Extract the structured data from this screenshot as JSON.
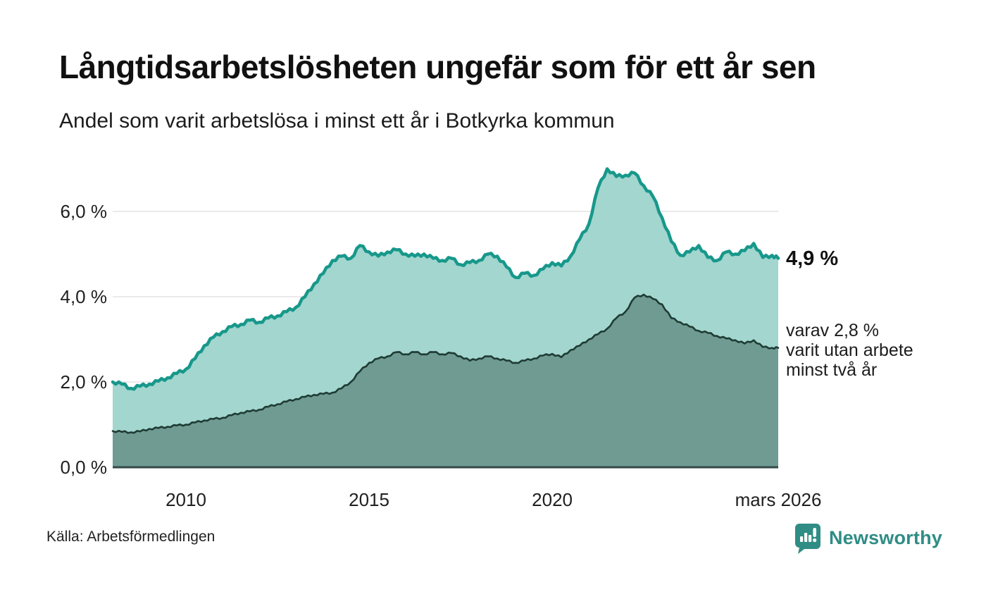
{
  "header": {
    "title": "Långtidsarbetslösheten ungefär som för ett år sen",
    "subtitle": "Andel som varit arbetslösa i minst ett år i Botkyrka kommun"
  },
  "annotations": {
    "latest_total": "4,9 %",
    "secondary_line1": "varav 2,8 %",
    "secondary_line2": "varit utan arbete",
    "secondary_line3": "minst två år"
  },
  "footer": {
    "source": "Källa: Arbetsförmedlingen",
    "brand_name": "Newsworthy"
  },
  "colors": {
    "brand_teal": "#2f8d85",
    "line_one_year": "#17988b",
    "fill_one_year": "#a2d6ce",
    "line_two_years": "#1e3b34",
    "fill_two_years": "#6f9b92",
    "grid": "#e3e3e3",
    "baseline": "#35494a",
    "text": "#111111"
  },
  "chart_data": {
    "type": "area",
    "title": "Långtidsarbetslösheten ungefär som för ett år sen",
    "subtitle": "Andel som varit arbetslösa i minst ett år i Botkyrka kommun",
    "unit": "%",
    "x_range": [
      2008,
      2026.17
    ],
    "ylim": [
      0,
      7.2
    ],
    "grid": "horizontal-only",
    "legend_position": "right-annotations",
    "y_axis": {
      "ticks": [
        {
          "label": "0,0 %",
          "value": 0
        },
        {
          "label": "2,0 %",
          "value": 2
        },
        {
          "label": "4,0 %",
          "value": 4
        },
        {
          "label": "6,0 %",
          "value": 6
        }
      ]
    },
    "x_axis": {
      "ticks": [
        {
          "label": "2010",
          "year": 2010
        },
        {
          "label": "2015",
          "year": 2015
        },
        {
          "label": "2020",
          "year": 2020
        },
        {
          "label": "mars 2026",
          "year": 2026.17
        }
      ]
    },
    "series": [
      {
        "id": "one-year",
        "name": "Andel arbetslösa minst ett år",
        "latest_label": "4,9 %",
        "latest_value": 4.9,
        "color": "#17988b",
        "fill": "#a2d6ce",
        "points": [
          [
            2008.0,
            2.0
          ],
          [
            2008.25,
            1.95
          ],
          [
            2008.5,
            1.85
          ],
          [
            2008.75,
            1.9
          ],
          [
            2009.0,
            1.95
          ],
          [
            2009.25,
            2.02
          ],
          [
            2009.5,
            2.1
          ],
          [
            2009.75,
            2.2
          ],
          [
            2010.0,
            2.3
          ],
          [
            2010.25,
            2.55
          ],
          [
            2010.5,
            2.85
          ],
          [
            2010.75,
            3.05
          ],
          [
            2011.0,
            3.18
          ],
          [
            2011.25,
            3.3
          ],
          [
            2011.5,
            3.35
          ],
          [
            2011.75,
            3.45
          ],
          [
            2012.0,
            3.4
          ],
          [
            2012.25,
            3.5
          ],
          [
            2012.5,
            3.55
          ],
          [
            2012.75,
            3.65
          ],
          [
            2013.0,
            3.75
          ],
          [
            2013.25,
            4.0
          ],
          [
            2013.5,
            4.3
          ],
          [
            2013.75,
            4.55
          ],
          [
            2014.0,
            4.85
          ],
          [
            2014.25,
            4.95
          ],
          [
            2014.5,
            4.9
          ],
          [
            2014.75,
            5.2
          ],
          [
            2015.0,
            5.05
          ],
          [
            2015.25,
            4.95
          ],
          [
            2015.5,
            5.05
          ],
          [
            2015.75,
            5.1
          ],
          [
            2016.0,
            5.0
          ],
          [
            2016.25,
            4.95
          ],
          [
            2016.5,
            5.0
          ],
          [
            2016.75,
            4.9
          ],
          [
            2017.0,
            4.85
          ],
          [
            2017.25,
            4.9
          ],
          [
            2017.5,
            4.75
          ],
          [
            2017.75,
            4.8
          ],
          [
            2018.0,
            4.85
          ],
          [
            2018.25,
            5.0
          ],
          [
            2018.5,
            4.95
          ],
          [
            2018.75,
            4.7
          ],
          [
            2019.0,
            4.45
          ],
          [
            2019.25,
            4.55
          ],
          [
            2019.5,
            4.5
          ],
          [
            2019.75,
            4.65
          ],
          [
            2020.0,
            4.8
          ],
          [
            2020.25,
            4.72
          ],
          [
            2020.5,
            4.95
          ],
          [
            2020.75,
            5.35
          ],
          [
            2021.0,
            5.7
          ],
          [
            2021.25,
            6.55
          ],
          [
            2021.5,
            7.0
          ],
          [
            2021.75,
            6.82
          ],
          [
            2022.0,
            6.85
          ],
          [
            2022.25,
            6.9
          ],
          [
            2022.5,
            6.6
          ],
          [
            2022.75,
            6.35
          ],
          [
            2023.0,
            5.85
          ],
          [
            2023.25,
            5.3
          ],
          [
            2023.5,
            4.97
          ],
          [
            2023.75,
            5.05
          ],
          [
            2024.0,
            5.2
          ],
          [
            2024.25,
            4.92
          ],
          [
            2024.5,
            4.85
          ],
          [
            2024.75,
            5.05
          ],
          [
            2025.0,
            5.0
          ],
          [
            2025.25,
            5.08
          ],
          [
            2025.5,
            5.25
          ],
          [
            2025.75,
            4.92
          ],
          [
            2026.0,
            4.97
          ],
          [
            2026.17,
            4.9
          ]
        ]
      },
      {
        "id": "two-years",
        "name": "Andel arbetslösa minst två år",
        "latest_label": "varav 2,8 % varit utan arbete minst två år",
        "latest_value": 2.8,
        "color": "#1e3b34",
        "fill": "#6f9b92",
        "points": [
          [
            2008.0,
            0.85
          ],
          [
            2008.25,
            0.83
          ],
          [
            2008.5,
            0.82
          ],
          [
            2008.75,
            0.84
          ],
          [
            2009.0,
            0.9
          ],
          [
            2009.25,
            0.92
          ],
          [
            2009.5,
            0.95
          ],
          [
            2009.75,
            0.98
          ],
          [
            2010.0,
            1.0
          ],
          [
            2010.25,
            1.05
          ],
          [
            2010.5,
            1.1
          ],
          [
            2010.75,
            1.13
          ],
          [
            2011.0,
            1.16
          ],
          [
            2011.25,
            1.22
          ],
          [
            2011.5,
            1.28
          ],
          [
            2011.75,
            1.31
          ],
          [
            2012.0,
            1.35
          ],
          [
            2012.25,
            1.42
          ],
          [
            2012.5,
            1.48
          ],
          [
            2012.75,
            1.54
          ],
          [
            2013.0,
            1.6
          ],
          [
            2013.25,
            1.65
          ],
          [
            2013.5,
            1.7
          ],
          [
            2013.75,
            1.72
          ],
          [
            2014.0,
            1.75
          ],
          [
            2014.25,
            1.85
          ],
          [
            2014.5,
            2.0
          ],
          [
            2014.75,
            2.25
          ],
          [
            2015.0,
            2.45
          ],
          [
            2015.25,
            2.55
          ],
          [
            2015.5,
            2.6
          ],
          [
            2015.75,
            2.7
          ],
          [
            2016.0,
            2.65
          ],
          [
            2016.25,
            2.7
          ],
          [
            2016.5,
            2.65
          ],
          [
            2016.75,
            2.7
          ],
          [
            2017.0,
            2.65
          ],
          [
            2017.25,
            2.68
          ],
          [
            2017.5,
            2.6
          ],
          [
            2017.75,
            2.5
          ],
          [
            2018.0,
            2.55
          ],
          [
            2018.25,
            2.6
          ],
          [
            2018.5,
            2.55
          ],
          [
            2018.75,
            2.5
          ],
          [
            2019.0,
            2.45
          ],
          [
            2019.25,
            2.5
          ],
          [
            2019.5,
            2.55
          ],
          [
            2019.75,
            2.62
          ],
          [
            2020.0,
            2.66
          ],
          [
            2020.25,
            2.58
          ],
          [
            2020.5,
            2.75
          ],
          [
            2020.75,
            2.85
          ],
          [
            2021.0,
            3.0
          ],
          [
            2021.25,
            3.12
          ],
          [
            2021.5,
            3.25
          ],
          [
            2021.75,
            3.5
          ],
          [
            2022.0,
            3.65
          ],
          [
            2022.25,
            3.98
          ],
          [
            2022.5,
            4.05
          ],
          [
            2022.75,
            3.95
          ],
          [
            2023.0,
            3.82
          ],
          [
            2023.25,
            3.5
          ],
          [
            2023.5,
            3.4
          ],
          [
            2023.75,
            3.3
          ],
          [
            2024.0,
            3.2
          ],
          [
            2024.25,
            3.15
          ],
          [
            2024.5,
            3.08
          ],
          [
            2024.75,
            3.02
          ],
          [
            2025.0,
            2.98
          ],
          [
            2025.25,
            2.9
          ],
          [
            2025.5,
            2.98
          ],
          [
            2025.75,
            2.82
          ],
          [
            2026.0,
            2.8
          ],
          [
            2026.17,
            2.8
          ]
        ]
      }
    ]
  }
}
